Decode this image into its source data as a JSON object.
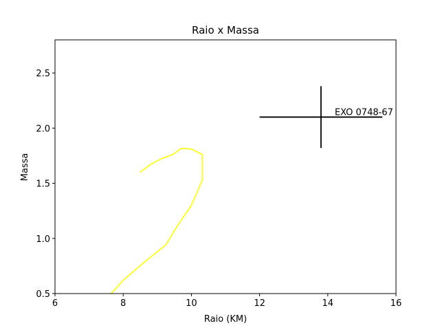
{
  "chart_data": {
    "type": "line",
    "title": "Raio x Massa",
    "xlabel": "Raio (KM)",
    "ylabel": "Massa",
    "xlim": [
      6,
      16
    ],
    "ylim": [
      0.5,
      2.8
    ],
    "xticks": [
      "6",
      "8",
      "10",
      "12",
      "14",
      "16"
    ],
    "yticks": [
      "0.5",
      "1.0",
      "1.5",
      "2.0",
      "2.5"
    ],
    "grid": false,
    "series": [
      {
        "color": "#ffff00",
        "x": [
          7.65,
          8.0,
          8.6,
          9.25,
          9.6,
          10.0,
          10.32,
          10.32,
          10.0,
          9.7,
          9.45,
          9.1,
          8.8,
          8.5
        ],
        "y": [
          0.5,
          0.62,
          0.78,
          0.94,
          1.12,
          1.3,
          1.53,
          1.76,
          1.81,
          1.815,
          1.76,
          1.72,
          1.67,
          1.6
        ]
      }
    ],
    "annotations": [
      {
        "label": "EXO 0748-67",
        "x": 13.8,
        "y": 2.1,
        "xerr": [
          1.8,
          1.8
        ],
        "yerr": [
          0.28,
          0.28
        ],
        "color": "#000000"
      }
    ]
  }
}
